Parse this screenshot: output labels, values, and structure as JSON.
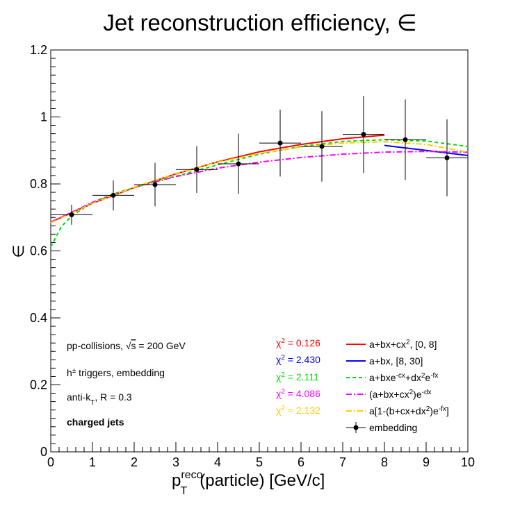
{
  "chart_data": {
    "type": "scatter",
    "title": "Jet reconstruction efficiency, ∈",
    "xlabel": {
      "base": "p",
      "sup": "reco",
      "sub": "T",
      "rest": "(particle) [GeV/c]"
    },
    "ylabel": "∈",
    "xlim": [
      0,
      10
    ],
    "ylim": [
      0,
      1.2
    ],
    "xticks": [
      "0",
      "1",
      "2",
      "3",
      "4",
      "5",
      "6",
      "7",
      "8",
      "9",
      "10"
    ],
    "yticks": [
      "0",
      "0.2",
      "0.4",
      "0.6",
      "0.8",
      "1",
      "1.2"
    ],
    "info_lines": [
      {
        "prefix": "pp-collisions, ",
        "sqrt": "s",
        "suffix": " = 200 GeV",
        "bold": false
      },
      {
        "prefix": "h",
        "sup": "±",
        "suffix": " triggers, embedding",
        "bold": false
      },
      {
        "prefix": "anti-k",
        "sub": "T",
        "suffix": ", R = 0.3",
        "bold": false
      },
      {
        "prefix": "charged jets",
        "bold": true
      }
    ],
    "chi2": [
      {
        "label": "χ",
        "sup": "2",
        "value": " = 0.126",
        "color": "#ff0000"
      },
      {
        "label": "χ",
        "sup": "2",
        "value": " = 2.430",
        "color": "#0000ff"
      },
      {
        "label": "χ",
        "sup": "2",
        "value": " = 2.111",
        "color": "#00dd00"
      },
      {
        "label": "χ",
        "sup": "2",
        "value": " = 4.086",
        "color": "#ff00ff"
      },
      {
        "label": "χ",
        "sup": "2",
        "value": " = 2.132",
        "color": "#ffcc00"
      }
    ],
    "legend": [
      {
        "parts": [
          [
            "a+bx+cx",
            ""
          ],
          [
            "2",
            "sup"
          ],
          [
            ", [0, 8]",
            ""
          ]
        ],
        "color": "#ff0000",
        "style": "solid"
      },
      {
        "parts": [
          [
            "a+bx, [8, 30]",
            ""
          ]
        ],
        "color": "#0000ff",
        "style": "solid"
      },
      {
        "parts": [
          [
            "a+bxe",
            ""
          ],
          [
            "-cx",
            "sup"
          ],
          [
            "+dx",
            ""
          ],
          [
            "2",
            "sup"
          ],
          [
            "e",
            ""
          ],
          [
            "-fx",
            "sup"
          ]
        ],
        "color": "#00dd00",
        "style": "dash"
      },
      {
        "parts": [
          [
            "(a+bx+cx",
            ""
          ],
          [
            "2",
            "sup"
          ],
          [
            ")e",
            ""
          ],
          [
            "-dx",
            "sup"
          ]
        ],
        "color": "#ff00ff",
        "style": "dashdot"
      },
      {
        "parts": [
          [
            "a[1-(b+cx+dx",
            ""
          ],
          [
            "2",
            "sup"
          ],
          [
            ")e",
            ""
          ],
          [
            "-fx",
            "sup"
          ],
          [
            "]",
            ""
          ]
        ],
        "color": "#ffcc00",
        "style": "dashdot"
      },
      {
        "parts": [
          [
            "embedding",
            ""
          ]
        ],
        "color": "#000000",
        "style": "marker"
      }
    ],
    "points": [
      {
        "x": 0.5,
        "y": 0.708,
        "xerr": 0.5,
        "yerr": 0.03
      },
      {
        "x": 1.5,
        "y": 0.766,
        "xerr": 0.5,
        "yerr": 0.045
      },
      {
        "x": 2.5,
        "y": 0.798,
        "xerr": 0.5,
        "yerr": 0.065
      },
      {
        "x": 3.5,
        "y": 0.843,
        "xerr": 0.5,
        "yerr": 0.07
      },
      {
        "x": 4.5,
        "y": 0.86,
        "xerr": 0.5,
        "yerr": 0.09
      },
      {
        "x": 5.5,
        "y": 0.922,
        "xerr": 0.5,
        "yerr": 0.1
      },
      {
        "x": 6.5,
        "y": 0.912,
        "xerr": 0.5,
        "yerr": 0.105
      },
      {
        "x": 7.5,
        "y": 0.948,
        "xerr": 0.5,
        "yerr": 0.115
      },
      {
        "x": 8.5,
        "y": 0.932,
        "xerr": 0.5,
        "yerr": 0.12
      },
      {
        "x": 9.5,
        "y": 0.878,
        "xerr": 0.5,
        "yerr": 0.115
      }
    ],
    "curves": [
      {
        "name": "a+bx+cx^2, [0, 8]",
        "color": "#ff0000",
        "style": "solid",
        "x": [
          0,
          1,
          2,
          3,
          4,
          5,
          6,
          7,
          8
        ],
        "y": [
          0.686,
          0.742,
          0.789,
          0.83,
          0.866,
          0.896,
          0.918,
          0.935,
          0.946
        ]
      },
      {
        "name": "a+bx, [8, 30]",
        "color": "#0000ff",
        "style": "solid",
        "x": [
          8,
          10
        ],
        "y": [
          0.915,
          0.885
        ]
      },
      {
        "name": "a+bxe^-cx+dx^2e^-fx",
        "color": "#00dd00",
        "style": "dash",
        "x": [
          0,
          0.25,
          0.5,
          1,
          1.5,
          2,
          2.5,
          3,
          4,
          5,
          6,
          7,
          8,
          9,
          10
        ],
        "y": [
          0.612,
          0.672,
          0.704,
          0.745,
          0.77,
          0.789,
          0.807,
          0.823,
          0.857,
          0.889,
          0.912,
          0.927,
          0.932,
          0.928,
          0.912
        ]
      },
      {
        "name": "(a+bx+cx^2)e^-dx",
        "color": "#ff00ff",
        "style": "dashdot",
        "x": [
          0,
          1,
          2,
          3,
          4,
          5,
          6,
          7,
          8,
          9,
          10
        ],
        "y": [
          0.686,
          0.745,
          0.79,
          0.822,
          0.847,
          0.865,
          0.879,
          0.889,
          0.895,
          0.897,
          0.895
        ]
      },
      {
        "name": "a[1-(b+cx+dx^2)e^-fx]",
        "color": "#ffcc00",
        "style": "dashdot",
        "x": [
          0,
          1,
          2,
          3,
          4,
          5,
          6,
          7,
          8,
          9,
          10
        ],
        "y": [
          0.684,
          0.742,
          0.79,
          0.831,
          0.865,
          0.891,
          0.91,
          0.922,
          0.926,
          0.918,
          0.895
        ]
      }
    ]
  }
}
